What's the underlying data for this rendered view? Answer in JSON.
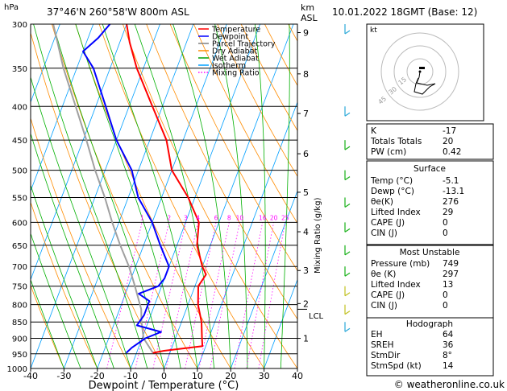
{
  "header": {
    "pressure_unit": "hPa",
    "location": "37°46'N  260°58'W  800m  ASL",
    "km_label": "km",
    "asl_label": "ASL",
    "datetime": "10.01.2022  18GMT  (Base: 12)"
  },
  "axes": {
    "xlabel": "Dewpoint / Temperature (°C)",
    "right_label": "Mixing Ratio (g/kg)",
    "lcl_label": "LCL"
  },
  "legend": [
    {
      "label": "Temperature",
      "color": "#ff0000"
    },
    {
      "label": "Dewpoint",
      "color": "#0000ff"
    },
    {
      "label": "Parcel Trajectory",
      "color": "#808080"
    },
    {
      "label": "Dry Adiabat",
      "color": "#ff8c00"
    },
    {
      "label": "Wet Adiabat",
      "color": "#00a000"
    },
    {
      "label": "Isotherm",
      "color": "#00a0ff"
    },
    {
      "label": "Mixing Ratio",
      "color": "#ff00ff"
    }
  ],
  "colors": {
    "temperature": "#ff0000",
    "dewpoint": "#0000ff",
    "parcel": "#a0a0a0",
    "dry_adiabat": "#ff8c00",
    "wet_adiabat": "#00b000",
    "isotherm": "#00a0ff",
    "mixing_ratio": "#ff00ff"
  },
  "chart_data": {
    "type": "skew-t",
    "x_ticks": [
      -40,
      -30,
      -20,
      -10,
      0,
      10,
      20,
      30,
      40
    ],
    "p_ticks": [
      300,
      350,
      400,
      450,
      500,
      550,
      600,
      650,
      700,
      750,
      800,
      850,
      900,
      950,
      1000
    ],
    "xlim": [
      -40,
      40
    ],
    "plim": [
      1000,
      300
    ],
    "km_ticks": [
      {
        "label": "9",
        "p": 309
      },
      {
        "label": "8",
        "p": 357
      },
      {
        "label": "7",
        "p": 410
      },
      {
        "label": "6",
        "p": 472
      },
      {
        "label": "5",
        "p": 540
      },
      {
        "label": "4",
        "p": 620
      },
      {
        "label": "3",
        "p": 710
      },
      {
        "label": "2",
        "p": 797
      },
      {
        "label": "1",
        "p": 900
      }
    ],
    "lcl_pressure": 813,
    "mixing_ratio_labels": [
      "1",
      "2",
      "3",
      "4",
      "6",
      "8",
      "10",
      "16",
      "20",
      "25"
    ],
    "temperature": [
      {
        "p": 947,
        "t": -5.1
      },
      {
        "p": 940,
        "t": -2
      },
      {
        "p": 925,
        "t": 9
      },
      {
        "p": 900,
        "t": 8
      },
      {
        "p": 850,
        "t": 6
      },
      {
        "p": 800,
        "t": 3
      },
      {
        "p": 750,
        "t": 1
      },
      {
        "p": 720,
        "t": 2
      },
      {
        "p": 700,
        "t": 0
      },
      {
        "p": 650,
        "t": -4
      },
      {
        "p": 600,
        "t": -6
      },
      {
        "p": 550,
        "t": -12
      },
      {
        "p": 500,
        "t": -20
      },
      {
        "p": 450,
        "t": -25
      },
      {
        "p": 400,
        "t": -33
      },
      {
        "p": 350,
        "t": -42
      },
      {
        "p": 320,
        "t": -47
      },
      {
        "p": 300,
        "t": -50
      }
    ],
    "dewpoint": [
      {
        "p": 947,
        "t": -13.1
      },
      {
        "p": 930,
        "t": -12
      },
      {
        "p": 900,
        "t": -9
      },
      {
        "p": 880,
        "t": -5
      },
      {
        "p": 860,
        "t": -13
      },
      {
        "p": 830,
        "t": -12
      },
      {
        "p": 790,
        "t": -12
      },
      {
        "p": 770,
        "t": -16
      },
      {
        "p": 750,
        "t": -11
      },
      {
        "p": 730,
        "t": -10
      },
      {
        "p": 700,
        "t": -10
      },
      {
        "p": 650,
        "t": -15
      },
      {
        "p": 600,
        "t": -20
      },
      {
        "p": 550,
        "t": -27
      },
      {
        "p": 500,
        "t": -32
      },
      {
        "p": 450,
        "t": -40
      },
      {
        "p": 400,
        "t": -47
      },
      {
        "p": 350,
        "t": -55
      },
      {
        "p": 330,
        "t": -60
      },
      {
        "p": 315,
        "t": -57
      },
      {
        "p": 300,
        "t": -55
      }
    ],
    "parcel": [
      {
        "p": 947,
        "t": -5.1
      },
      {
        "p": 900,
        "t": -9.5
      },
      {
        "p": 850,
        "t": -12
      },
      {
        "p": 813,
        "t": -13.5
      },
      {
        "p": 750,
        "t": -18
      },
      {
        "p": 700,
        "t": -22
      },
      {
        "p": 650,
        "t": -27
      },
      {
        "p": 600,
        "t": -32
      },
      {
        "p": 550,
        "t": -37
      },
      {
        "p": 500,
        "t": -43
      },
      {
        "p": 450,
        "t": -49
      },
      {
        "p": 400,
        "t": -56
      },
      {
        "p": 350,
        "t": -64
      },
      {
        "p": 300,
        "t": -72
      }
    ]
  },
  "hodograph": {
    "title": "kt",
    "ring_labels": [
      "45",
      "30",
      "15"
    ]
  },
  "indices": [
    {
      "label": "K",
      "value": "-17"
    },
    {
      "label": "Totals Totals",
      "value": "20"
    },
    {
      "label": "PW (cm)",
      "value": "0.42"
    }
  ],
  "surface": {
    "title": "Surface",
    "rows": [
      {
        "label": "Temp (°C)",
        "value": "-5.1"
      },
      {
        "label": "Dewp (°C)",
        "value": "-13.1"
      },
      {
        "label": "θe(K)",
        "value": "276"
      },
      {
        "label": "Lifted Index",
        "value": "29"
      },
      {
        "label": "CAPE (J)",
        "value": "0"
      },
      {
        "label": "CIN (J)",
        "value": "0"
      }
    ]
  },
  "most_unstable": {
    "title": "Most Unstable",
    "rows": [
      {
        "label": "Pressure (mb)",
        "value": "749"
      },
      {
        "label": "θe (K)",
        "value": "297"
      },
      {
        "label": "Lifted Index",
        "value": "13"
      },
      {
        "label": "CAPE (J)",
        "value": "0"
      },
      {
        "label": "CIN (J)",
        "value": "0"
      }
    ]
  },
  "hodograph_table": {
    "title": "Hodograph",
    "rows": [
      {
        "label": "EH",
        "value": "64"
      },
      {
        "label": "SREH",
        "value": "36"
      },
      {
        "label": "StmDir",
        "value": "8°"
      },
      {
        "label": "StmSpd (kt)",
        "value": "14"
      }
    ]
  },
  "footer": {
    "copyright": "© weatheronline.co.uk"
  }
}
